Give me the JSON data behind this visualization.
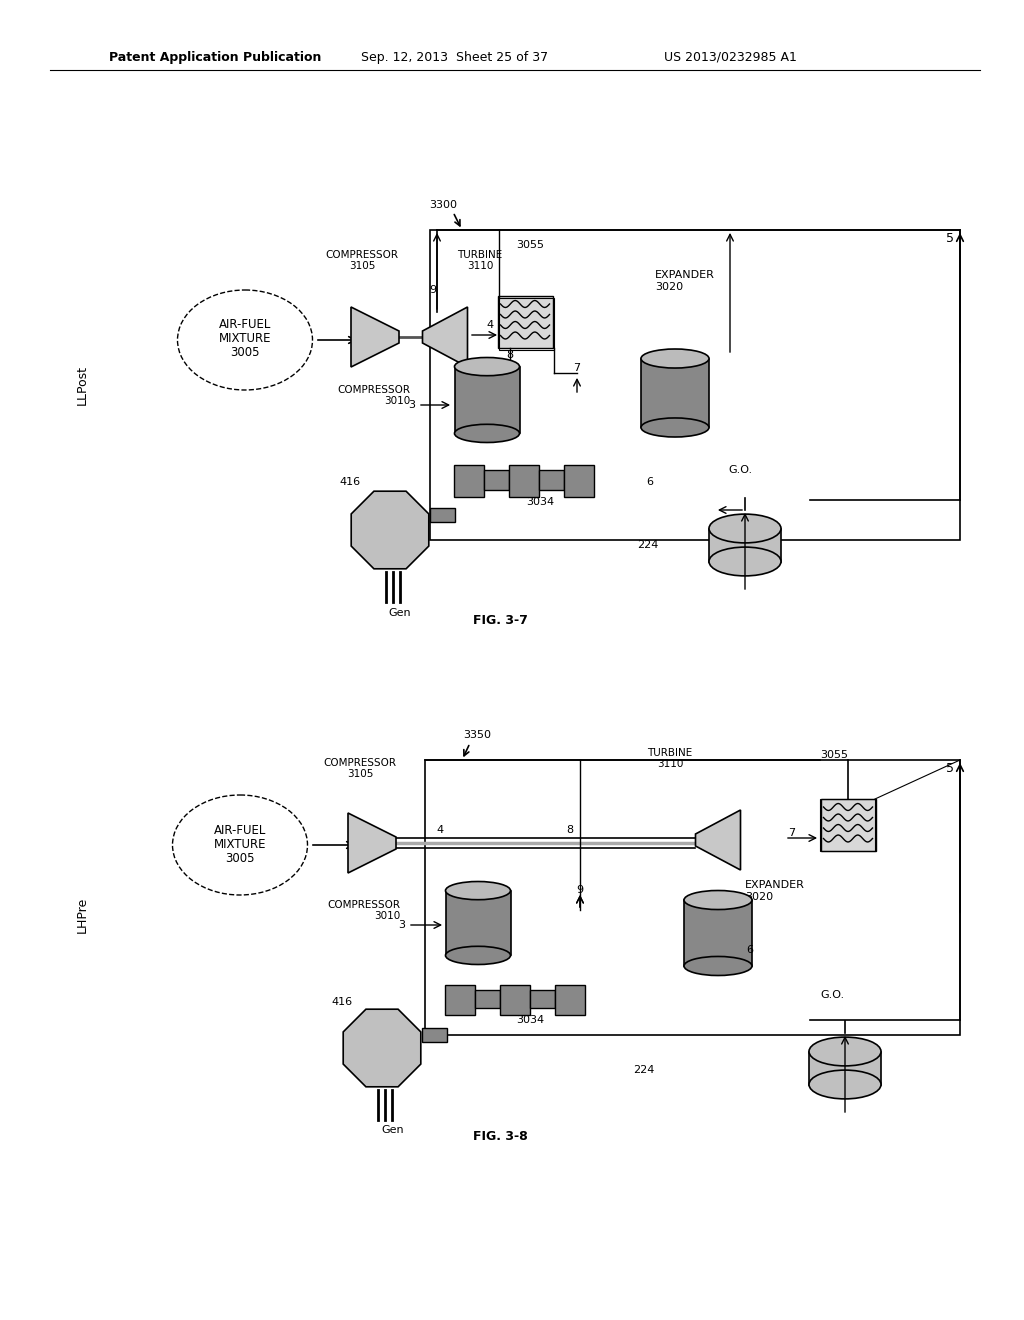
{
  "bg_color": "#ffffff",
  "header_text": "Patent Application Publication",
  "header_date": "Sep. 12, 2013  Sheet 25 of 37",
  "header_patent": "US 2013/0232985 A1",
  "fig1_label": "FIG. 3-7",
  "fig2_label": "FIG. 3-8",
  "llpost_label": "LLPost",
  "lhpre_label": "LHPre"
}
